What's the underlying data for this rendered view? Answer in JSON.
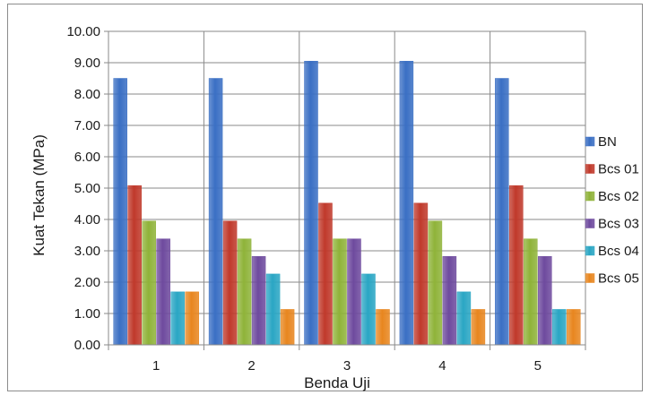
{
  "chart_data": {
    "type": "bar",
    "title": "",
    "xlabel": "Benda Uji",
    "ylabel": "Kuat Tekan (MPa)",
    "ylim": [
      0,
      10
    ],
    "ytick_step": 1,
    "ytick_labels": [
      "0.00",
      "1.00",
      "2.00",
      "3.00",
      "4.00",
      "5.00",
      "6.00",
      "7.00",
      "8.00",
      "9.00",
      "10.00"
    ],
    "categories": [
      "1",
      "2",
      "3",
      "4",
      "5"
    ],
    "grid": true,
    "legend_position": "right",
    "series": [
      {
        "name": "BN",
        "color": "#3a6fc4",
        "values": [
          8.5,
          8.5,
          9.05,
          9.05,
          8.5
        ]
      },
      {
        "name": "Bcs 01",
        "color": "#c0392b",
        "values": [
          5.08,
          3.95,
          4.52,
          4.52,
          5.08
        ]
      },
      {
        "name": "Bcs 02",
        "color": "#8fb339",
        "values": [
          3.95,
          3.38,
          3.38,
          3.95,
          3.38
        ]
      },
      {
        "name": "Bcs 03",
        "color": "#6e4a9e",
        "values": [
          3.38,
          2.82,
          3.38,
          2.82,
          2.82
        ]
      },
      {
        "name": "Bcs 04",
        "color": "#2aa6c4",
        "values": [
          1.69,
          2.26,
          2.26,
          1.69,
          1.13
        ]
      },
      {
        "name": "Bcs 05",
        "color": "#e8861f",
        "values": [
          1.69,
          1.13,
          1.13,
          1.13,
          1.13
        ]
      }
    ]
  }
}
